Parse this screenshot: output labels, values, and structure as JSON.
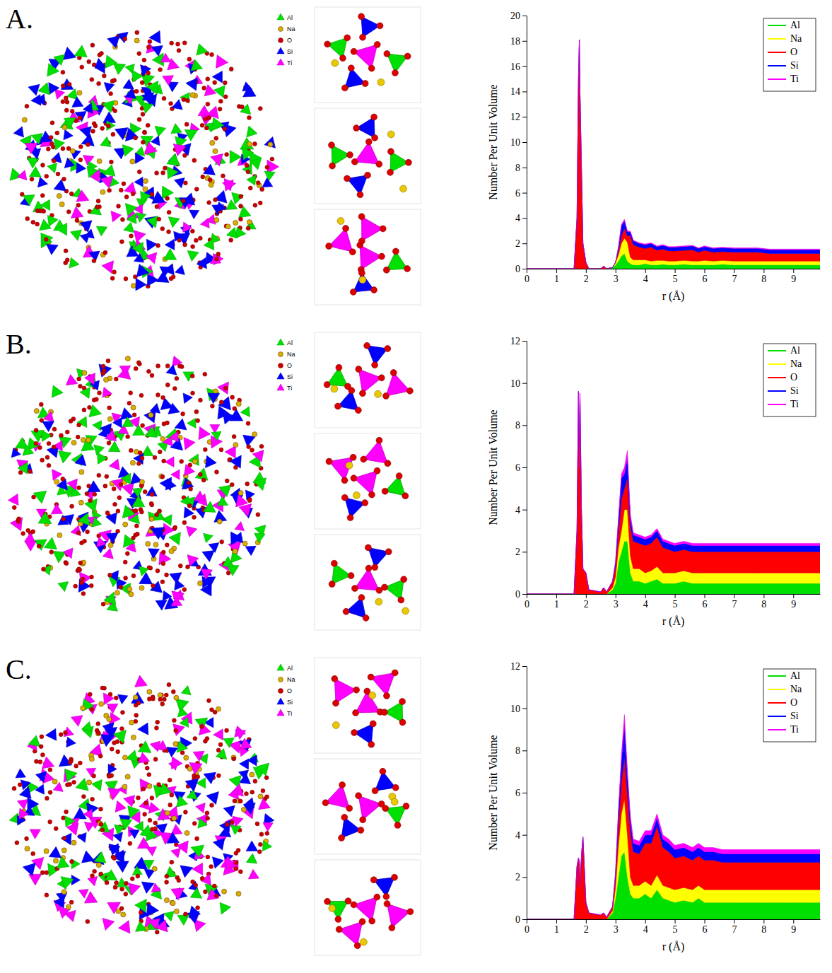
{
  "chart_data": [
    {
      "type": "area",
      "title": "A.",
      "stacked": true,
      "legend": "upper right",
      "structure_legend": [
        "Al",
        "Na",
        "O",
        "Si",
        "Ti"
      ],
      "x_label": "r (Å)",
      "y_label": "Number Per Unit Volume",
      "xlim": [
        0,
        9.9
      ],
      "xticks": [
        0,
        1,
        2,
        3,
        4,
        5,
        6,
        7,
        8,
        9
      ],
      "ylim": [
        0,
        20
      ],
      "yticks": [
        0,
        2,
        4,
        6,
        8,
        10,
        12,
        14,
        16,
        18,
        20
      ],
      "x": [
        0,
        1.6,
        1.7,
        1.75,
        1.78,
        1.8,
        1.85,
        1.9,
        2.0,
        2.1,
        2.5,
        2.6,
        2.7,
        2.9,
        3.0,
        3.1,
        3.2,
        3.3,
        3.4,
        3.5,
        3.6,
        3.8,
        4.0,
        4.2,
        4.4,
        4.6,
        4.8,
        5.0,
        5.3,
        5.6,
        5.8,
        6.0,
        6.3,
        6.6,
        7.0,
        7.4,
        7.8,
        8.2,
        8.6,
        9.0,
        9.4,
        9.9
      ],
      "series": [
        {
          "name": "Al",
          "color": "#00e000",
          "values": [
            0,
            0,
            0,
            0,
            0,
            0,
            0,
            0,
            0,
            0,
            0,
            0,
            0,
            0.1,
            0.3,
            0.6,
            1.0,
            1.2,
            0.6,
            0.4,
            0.3,
            0.3,
            0.4,
            0.3,
            0.3,
            0.35,
            0.3,
            0.3,
            0.35,
            0.3,
            0.3,
            0.3,
            0.3,
            0.35,
            0.3,
            0.3,
            0.3,
            0.3,
            0.3,
            0.3,
            0.3,
            0.3
          ]
        },
        {
          "name": "Na",
          "color": "#ffff00",
          "values": [
            0,
            0,
            0,
            0,
            0,
            0,
            0,
            0,
            0,
            0,
            0,
            0,
            0,
            0,
            0.2,
            0.5,
            1.0,
            1.2,
            1.5,
            0.5,
            0.4,
            0.4,
            0.3,
            0.3,
            0.35,
            0.3,
            0.3,
            0.3,
            0.3,
            0.3,
            0.3,
            0.35,
            0.3,
            0.3,
            0.3,
            0.3,
            0.3,
            0.3,
            0.3,
            0.3,
            0.3,
            0.3
          ]
        },
        {
          "name": "O",
          "color": "#ff0000",
          "values": [
            0,
            0,
            4,
            15,
            18.1,
            14,
            8,
            2,
            0.5,
            0,
            0,
            0.2,
            0,
            0,
            0,
            0.3,
            0.6,
            0.8,
            0.5,
            1.7,
            1.2,
            1.0,
            0.9,
            1.1,
            0.8,
            0.9,
            0.8,
            0.8,
            0.8,
            0.9,
            0.7,
            0.8,
            0.7,
            0.7,
            0.7,
            0.7,
            0.7,
            0.6,
            0.6,
            0.6,
            0.6,
            0.6
          ]
        },
        {
          "name": "Si",
          "color": "#0000ff",
          "values": [
            0,
            0,
            0,
            0,
            0,
            0,
            0,
            0,
            0,
            0,
            0,
            0,
            0,
            0,
            0,
            0.3,
            0.8,
            0.6,
            0.3,
            0.3,
            0.3,
            0.3,
            0.3,
            0.3,
            0.3,
            0.3,
            0.3,
            0.3,
            0.3,
            0.3,
            0.3,
            0.3,
            0.3,
            0.3,
            0.3,
            0.3,
            0.3,
            0.3,
            0.3,
            0.3,
            0.3,
            0.3
          ]
        },
        {
          "name": "Ti",
          "color": "#ff00ff",
          "values": [
            0,
            0,
            0,
            0,
            0,
            0,
            0,
            0,
            0,
            0,
            0,
            0,
            0,
            0,
            0,
            0,
            0.1,
            0.1,
            0.1,
            0.05,
            0.05,
            0.05,
            0.05,
            0.05,
            0.05,
            0.05,
            0.05,
            0.05,
            0.05,
            0.05,
            0.05,
            0.05,
            0.05,
            0.05,
            0.05,
            0.05,
            0.05,
            0.05,
            0.05,
            0.05,
            0.05,
            0.05
          ]
        }
      ]
    },
    {
      "type": "area",
      "title": "B.",
      "stacked": true,
      "legend": "upper right",
      "structure_legend": [
        "Al",
        "Na",
        "O",
        "Si",
        "Ti"
      ],
      "x_label": "r (Å)",
      "y_label": "Number Per Unit Volume",
      "xlim": [
        0,
        9.9
      ],
      "xticks": [
        0,
        1,
        2,
        3,
        4,
        5,
        6,
        7,
        8,
        9
      ],
      "ylim": [
        0,
        12
      ],
      "yticks": [
        0,
        2,
        4,
        6,
        8,
        10,
        12
      ],
      "x": [
        0,
        1.6,
        1.7,
        1.75,
        1.78,
        1.8,
        1.85,
        1.9,
        2.0,
        2.1,
        2.5,
        2.6,
        2.7,
        2.9,
        3.0,
        3.1,
        3.2,
        3.3,
        3.4,
        3.5,
        3.6,
        3.8,
        4.0,
        4.2,
        4.4,
        4.6,
        4.8,
        5.0,
        5.3,
        5.6,
        5.8,
        6.0,
        6.3,
        6.6,
        7.0,
        7.4,
        7.8,
        8.2,
        8.6,
        9.0,
        9.4,
        9.9
      ],
      "series": [
        {
          "name": "Al",
          "color": "#00e000",
          "values": [
            0,
            0,
            0,
            0,
            0,
            0,
            0,
            0,
            0,
            0,
            0,
            0,
            0,
            0.2,
            0.5,
            1.5,
            2.0,
            2.5,
            2.5,
            1.0,
            0.6,
            0.6,
            0.5,
            0.6,
            0.7,
            0.5,
            0.5,
            0.5,
            0.6,
            0.5,
            0.5,
            0.5,
            0.5,
            0.5,
            0.5,
            0.5,
            0.5,
            0.5,
            0.5,
            0.5,
            0.5,
            0.5
          ]
        },
        {
          "name": "Na",
          "color": "#ffff00",
          "values": [
            0,
            0,
            0,
            0,
            0,
            0,
            0,
            0,
            0,
            0,
            0,
            0,
            0,
            0.1,
            0.3,
            0.7,
            1.0,
            1.5,
            1.5,
            0.8,
            0.6,
            0.6,
            0.5,
            0.5,
            0.6,
            0.5,
            0.5,
            0.5,
            0.5,
            0.5,
            0.5,
            0.5,
            0.5,
            0.5,
            0.5,
            0.5,
            0.5,
            0.5,
            0.5,
            0.5,
            0.5,
            0.5
          ]
        },
        {
          "name": "O",
          "color": "#ff0000",
          "values": [
            0,
            0,
            3,
            9.6,
            6,
            9.5,
            4,
            1.2,
            1,
            0.2,
            0.1,
            0.3,
            0.1,
            0.3,
            0.5,
            0.8,
            1.5,
            1.0,
            1.5,
            1.4,
            1.3,
            1.2,
            1.3,
            1.3,
            1.4,
            1.2,
            1.1,
            1.0,
            1.0,
            1.0,
            1.0,
            1.0,
            1.0,
            1.0,
            1.0,
            1.0,
            1.0,
            1.0,
            1.0,
            1.0,
            1.0,
            1.0
          ]
        },
        {
          "name": "Si",
          "color": "#0000ff",
          "values": [
            0,
            0,
            0,
            0,
            0,
            0,
            0,
            0,
            0,
            0,
            0,
            0,
            0,
            0,
            0.2,
            0.5,
            1.0,
            0.7,
            0.9,
            0.4,
            0.3,
            0.3,
            0.3,
            0.3,
            0.3,
            0.3,
            0.3,
            0.3,
            0.3,
            0.3,
            0.3,
            0.3,
            0.3,
            0.3,
            0.3,
            0.3,
            0.3,
            0.3,
            0.3,
            0.3,
            0.3,
            0.3
          ]
        },
        {
          "name": "Ti",
          "color": "#ff00ff",
          "values": [
            0,
            0,
            0,
            0,
            0,
            0,
            0,
            0,
            0,
            0,
            0,
            0,
            0,
            0,
            0,
            0.1,
            0.2,
            0.3,
            0.4,
            0.2,
            0.1,
            0.1,
            0.1,
            0.1,
            0.1,
            0.1,
            0.1,
            0.1,
            0.1,
            0.1,
            0.1,
            0.1,
            0.1,
            0.1,
            0.1,
            0.1,
            0.1,
            0.1,
            0.1,
            0.1,
            0.1,
            0.1
          ]
        }
      ]
    },
    {
      "type": "area",
      "title": "C.",
      "stacked": true,
      "legend": "upper right",
      "structure_legend": [
        "Al",
        "Na",
        "O",
        "Si",
        "Ti"
      ],
      "x_label": "r (Å)",
      "y_label": "Number Per Unit Volume",
      "xlim": [
        0,
        9.9
      ],
      "xticks": [
        0,
        1,
        2,
        3,
        4,
        5,
        6,
        7,
        8,
        9
      ],
      "ylim": [
        0,
        12
      ],
      "yticks": [
        0,
        2,
        4,
        6,
        8,
        10,
        12
      ],
      "x": [
        0,
        1.6,
        1.7,
        1.75,
        1.78,
        1.8,
        1.85,
        1.9,
        2.0,
        2.1,
        2.5,
        2.6,
        2.7,
        2.9,
        3.0,
        3.1,
        3.2,
        3.3,
        3.4,
        3.5,
        3.6,
        3.8,
        4.0,
        4.2,
        4.4,
        4.6,
        4.8,
        5.0,
        5.3,
        5.6,
        5.8,
        6.0,
        6.3,
        6.6,
        7.0,
        7.4,
        7.8,
        8.2,
        8.6,
        9.0,
        9.4,
        9.9
      ],
      "series": [
        {
          "name": "Al",
          "color": "#00e000",
          "values": [
            0,
            0,
            0,
            0,
            0,
            0,
            0,
            0,
            0,
            0,
            0,
            0,
            0,
            0.3,
            1.0,
            2.0,
            3.0,
            3.2,
            2.0,
            1.2,
            1.0,
            1.0,
            1.2,
            1.0,
            1.4,
            1.0,
            0.9,
            0.8,
            0.9,
            0.8,
            1.0,
            0.8,
            0.8,
            0.8,
            0.8,
            0.8,
            0.8,
            0.8,
            0.8,
            0.8,
            0.8,
            0.8
          ]
        },
        {
          "name": "Na",
          "color": "#ffff00",
          "values": [
            0,
            0,
            0,
            0,
            0,
            0,
            0,
            0,
            0,
            0,
            0,
            0,
            0,
            0.1,
            0.5,
            1.5,
            2.0,
            2.5,
            2.0,
            0.8,
            0.6,
            0.6,
            0.6,
            0.6,
            0.7,
            0.6,
            0.6,
            0.6,
            0.6,
            0.6,
            0.6,
            0.6,
            0.6,
            0.6,
            0.6,
            0.6,
            0.6,
            0.6,
            0.6,
            0.6,
            0.6,
            0.6
          ]
        },
        {
          "name": "O",
          "color": "#ff0000",
          "values": [
            0,
            0,
            2.5,
            2.9,
            2.7,
            1.5,
            3.0,
            3.9,
            0.8,
            0.3,
            0.2,
            0.3,
            0.1,
            0.2,
            0.5,
            1.0,
            1.5,
            2.0,
            2.0,
            2.2,
            1.6,
            1.5,
            1.8,
            2.0,
            2.3,
            1.8,
            1.7,
            1.5,
            1.5,
            1.4,
            1.4,
            1.4,
            1.4,
            1.3,
            1.3,
            1.3,
            1.3,
            1.3,
            1.3,
            1.3,
            1.3,
            1.3
          ]
        },
        {
          "name": "Si",
          "color": "#0000ff",
          "values": [
            0,
            0,
            0,
            0,
            0,
            0,
            0,
            0,
            0,
            0,
            0,
            0,
            0,
            0,
            0.2,
            0.6,
            1.0,
            1.5,
            0.8,
            0.5,
            0.4,
            0.4,
            0.4,
            0.4,
            0.4,
            0.4,
            0.4,
            0.4,
            0.4,
            0.4,
            0.4,
            0.4,
            0.4,
            0.4,
            0.4,
            0.4,
            0.4,
            0.4,
            0.4,
            0.4,
            0.4,
            0.4
          ]
        },
        {
          "name": "Ti",
          "color": "#ff00ff",
          "values": [
            0,
            0,
            0,
            0,
            0,
            0,
            0,
            0,
            0,
            0,
            0,
            0,
            0,
            0,
            0,
            0.1,
            0.3,
            0.5,
            0.3,
            0.2,
            0.2,
            0.2,
            0.2,
            0.2,
            0.2,
            0.2,
            0.2,
            0.2,
            0.2,
            0.2,
            0.2,
            0.2,
            0.2,
            0.2,
            0.2,
            0.2,
            0.2,
            0.2,
            0.2,
            0.2,
            0.2,
            0.2
          ]
        }
      ]
    }
  ]
}
